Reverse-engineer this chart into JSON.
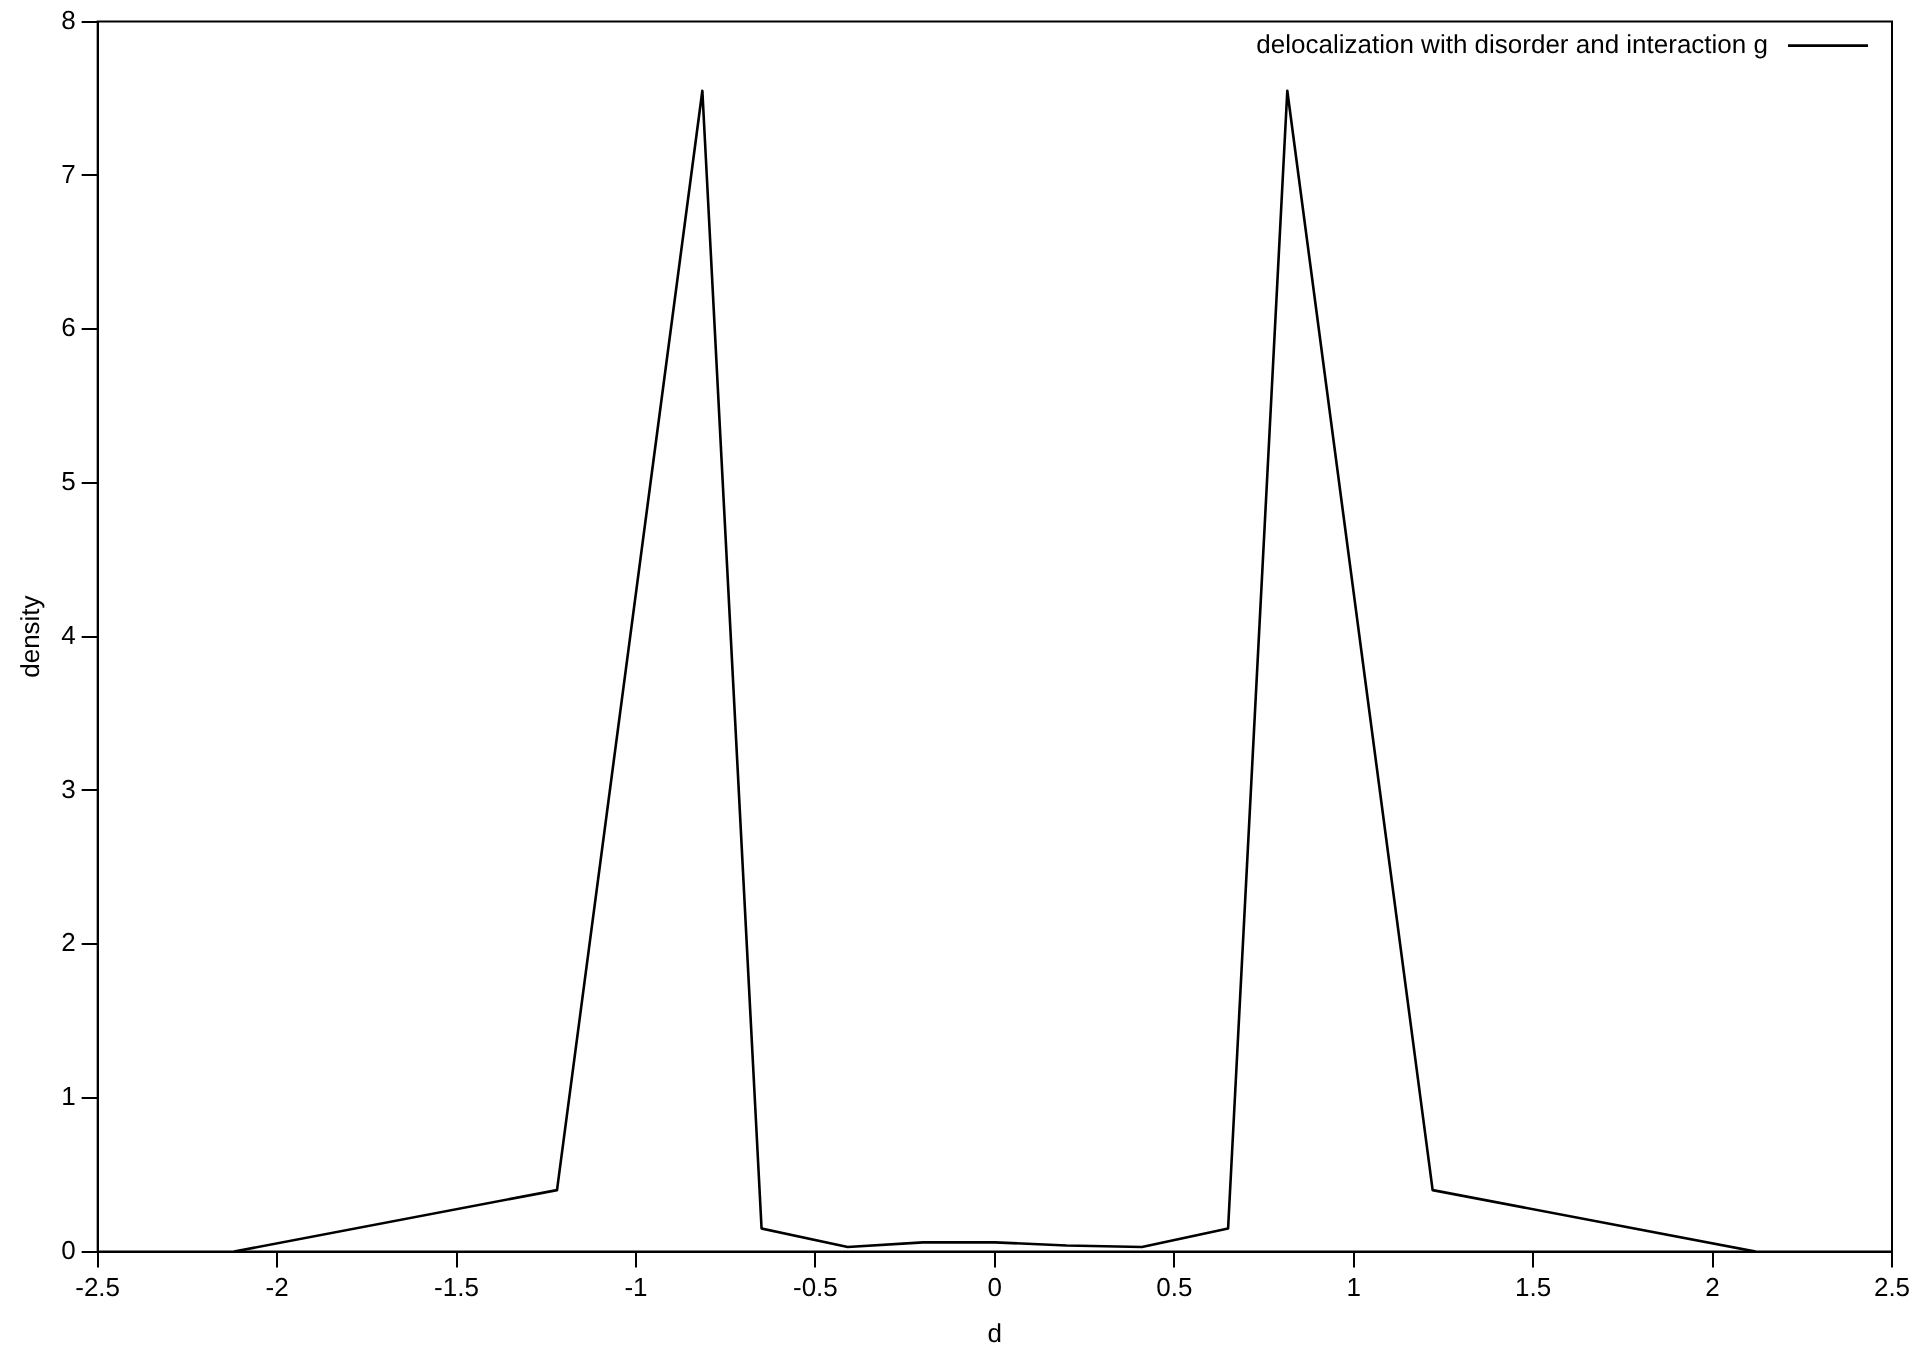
{
  "chart_data": {
    "type": "line",
    "xlabel": "d",
    "ylabel": "density",
    "x": [
      -2.12,
      -1.22,
      -0.815,
      -0.65,
      -0.41,
      -0.2,
      0,
      0.2,
      0.41,
      0.65,
      0.815,
      1.22,
      2.12
    ],
    "series": [
      {
        "name": "delocalization with disorder and interaction g",
        "color": "#000000",
        "values": [
          0,
          0.4,
          7.55,
          0.15,
          0.03,
          0.06,
          0.06,
          0.04,
          0.03,
          0.15,
          7.55,
          0.4,
          0
        ]
      }
    ],
    "xlim": [
      -2.5,
      2.5
    ],
    "xticks": [
      -2.5,
      -2,
      -1.5,
      -1,
      -0.5,
      0,
      0.5,
      1,
      1.5,
      2,
      2.5
    ],
    "ylim": [
      0,
      8
    ],
    "yticks": [
      0,
      1,
      2,
      3,
      4,
      5,
      6,
      7,
      8
    ],
    "grid": false,
    "legend": "top right",
    "marker": "none",
    "line_style": "solid"
  }
}
